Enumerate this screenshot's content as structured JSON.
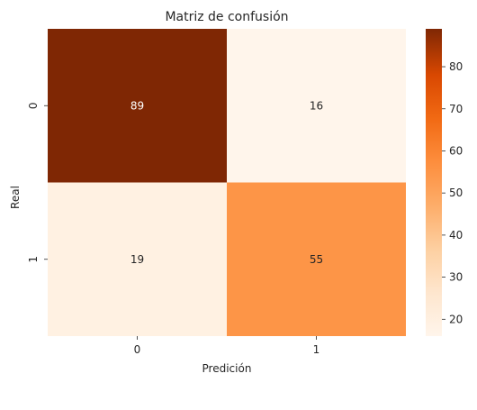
{
  "chart_data": {
    "type": "heatmap",
    "title": "Matriz de confusión",
    "xlabel": "Predición",
    "ylabel": "Real",
    "x_categories": [
      "0",
      "1"
    ],
    "y_categories": [
      "0",
      "1"
    ],
    "values": [
      [
        89,
        16
      ],
      [
        19,
        55
      ]
    ],
    "colormap": "Oranges",
    "colorbar": {
      "range": [
        16,
        89
      ],
      "ticks": [
        20,
        30,
        40,
        50,
        60,
        70,
        80
      ],
      "tick_labels": [
        "20",
        "30",
        "40",
        "50",
        "60",
        "70",
        "80"
      ]
    },
    "cell_label_colors": {
      "dark_bg": "#ffffff",
      "light_bg": "#262626"
    }
  }
}
